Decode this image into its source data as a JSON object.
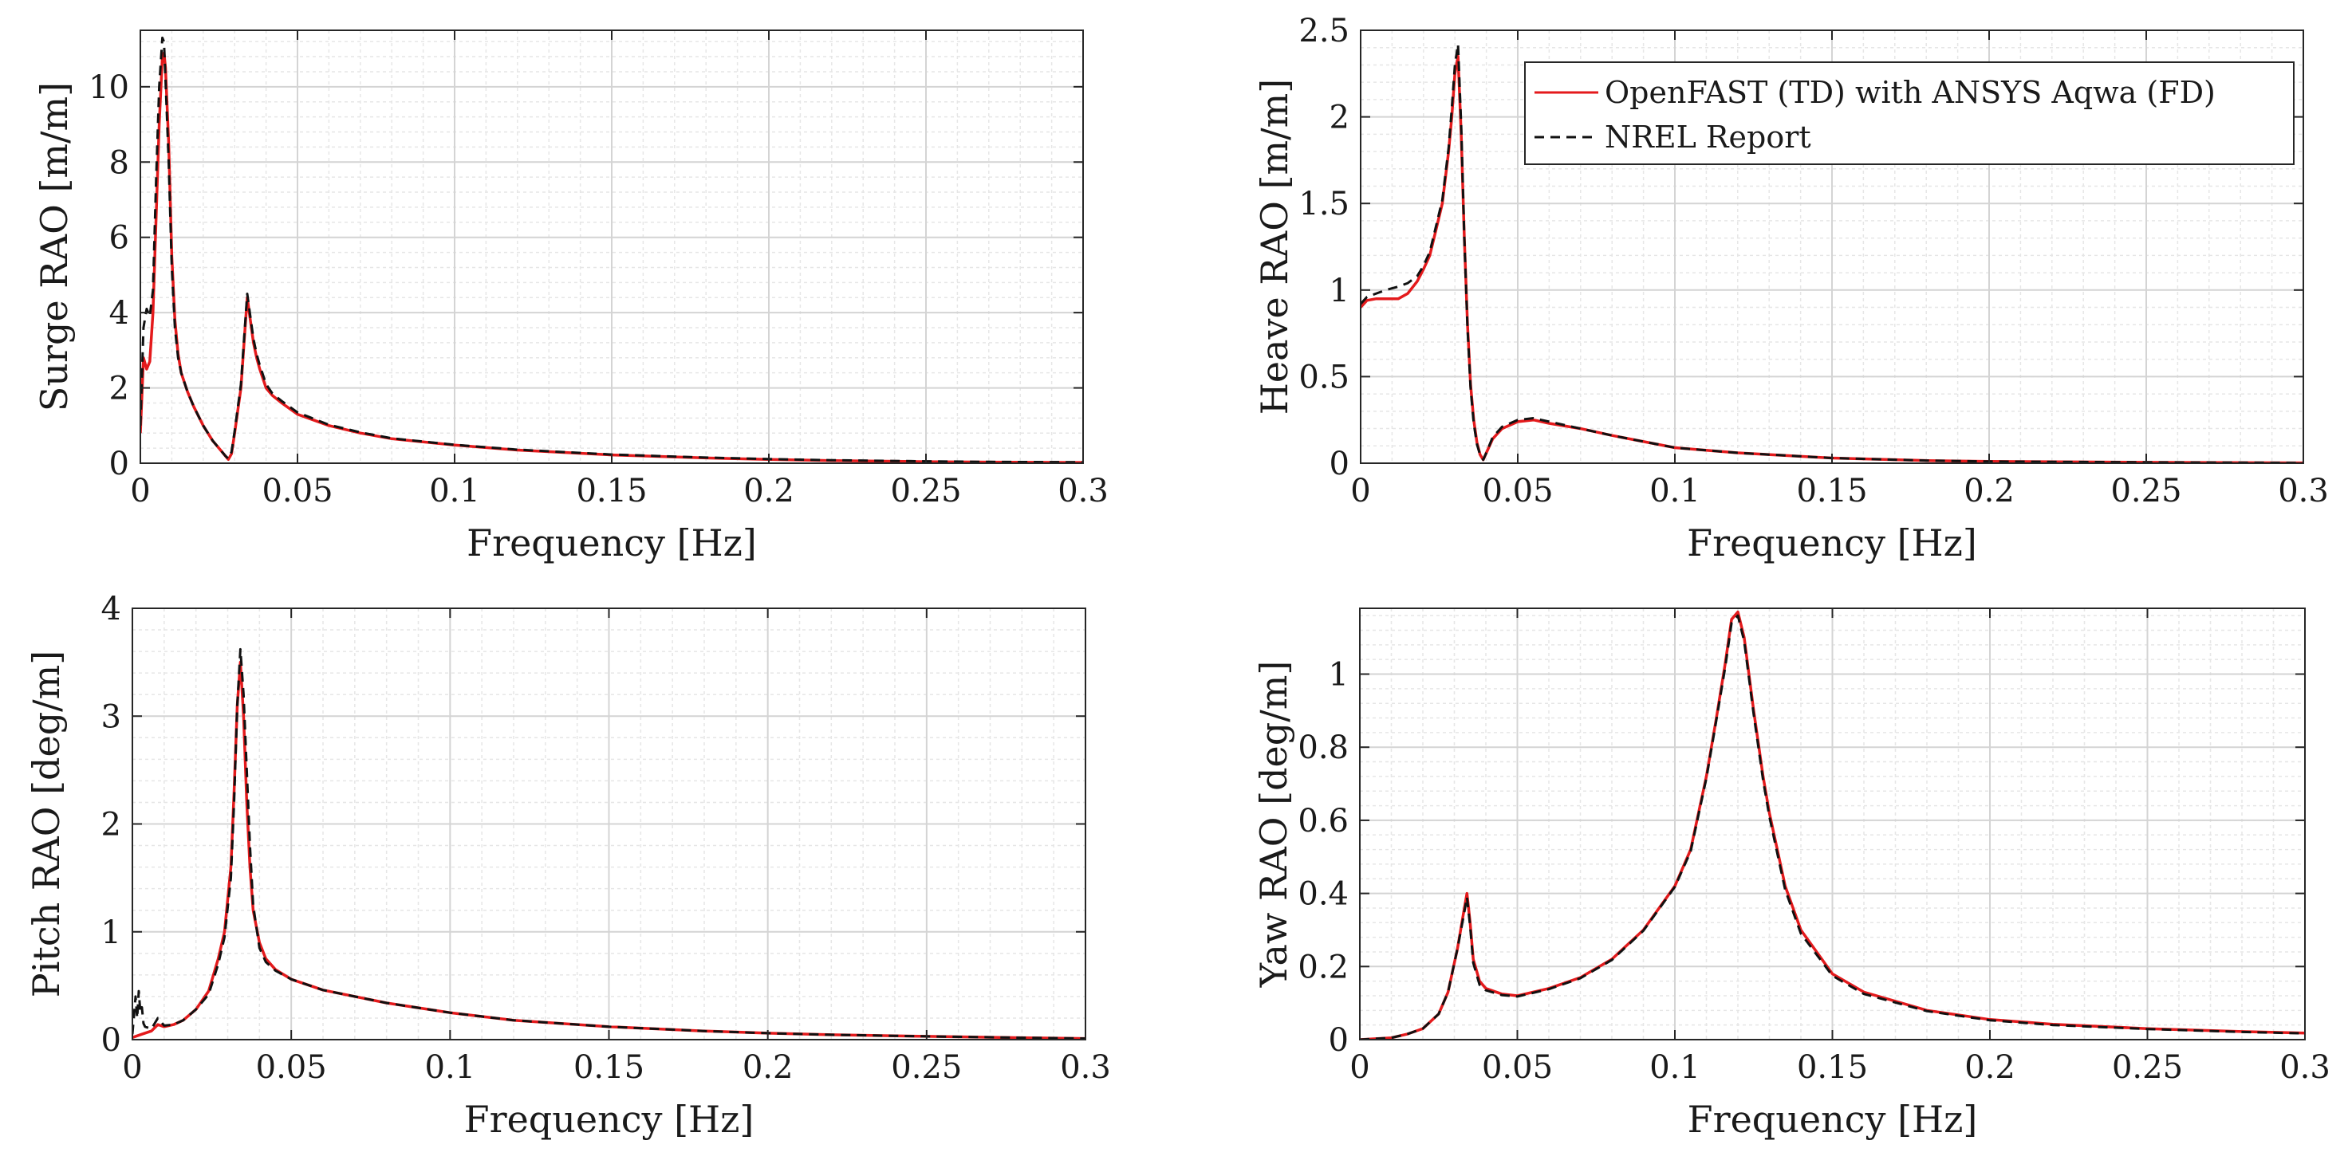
{
  "figure": {
    "title": ""
  },
  "chart_data": [
    {
      "type": "line",
      "id": "surge",
      "title": "",
      "ylabel": "Surge RAO [m/m]",
      "xlabel": "Frequency [Hz]",
      "xlim": [
        0,
        0.3
      ],
      "ylim": [
        0,
        11.5
      ],
      "xticks": [
        0,
        0.05,
        0.1,
        0.15,
        0.2,
        0.25,
        0.3
      ],
      "xtick_labels": [
        "0",
        "0.05",
        "0.1",
        "0.15",
        "0.2",
        "0.25",
        "0.3"
      ],
      "yticks": [
        0,
        2,
        4,
        6,
        8,
        10
      ],
      "ytick_labels": [
        "0",
        "2",
        "4",
        "6",
        "8",
        "10"
      ],
      "grid": true,
      "series": [
        {
          "name": "OpenFAST (TD) with ANSYS Aqwa (FD)",
          "color": "#e41a1c",
          "style": "solid",
          "x": [
            0,
            0.001,
            0.002,
            0.003,
            0.004,
            0.005,
            0.006,
            0.007,
            0.0075,
            0.008,
            0.009,
            0.01,
            0.011,
            0.012,
            0.013,
            0.015,
            0.017,
            0.02,
            0.023,
            0.025,
            0.027,
            0.028,
            0.029,
            0.03,
            0.032,
            0.033,
            0.034,
            0.035,
            0.036,
            0.037,
            0.038,
            0.04,
            0.042,
            0.045,
            0.05,
            0.06,
            0.07,
            0.08,
            0.1,
            0.12,
            0.15,
            0.18,
            0.2,
            0.22,
            0.25,
            0.27,
            0.3
          ],
          "y": [
            0.8,
            2.8,
            2.5,
            2.7,
            4.0,
            6.5,
            9.0,
            10.8,
            10.9,
            10.5,
            8.5,
            5.5,
            3.8,
            2.9,
            2.4,
            1.9,
            1.5,
            1.0,
            0.6,
            0.4,
            0.2,
            0.1,
            0.25,
            0.8,
            2.0,
            3.2,
            4.4,
            3.8,
            3.2,
            2.8,
            2.5,
            2.0,
            1.8,
            1.6,
            1.3,
            1.0,
            0.8,
            0.65,
            0.48,
            0.35,
            0.22,
            0.14,
            0.1,
            0.07,
            0.04,
            0.03,
            0.02
          ]
        },
        {
          "name": "NREL Report",
          "color": "#111111",
          "style": "dashed",
          "x": [
            0,
            0.001,
            0.002,
            0.003,
            0.004,
            0.005,
            0.006,
            0.007,
            0.0075,
            0.008,
            0.009,
            0.01,
            0.011,
            0.012,
            0.013,
            0.015,
            0.017,
            0.02,
            0.023,
            0.025,
            0.027,
            0.028,
            0.029,
            0.03,
            0.032,
            0.033,
            0.034,
            0.035,
            0.036,
            0.037,
            0.038,
            0.04,
            0.042,
            0.045,
            0.05,
            0.06,
            0.07,
            0.08,
            0.1,
            0.12,
            0.15,
            0.18,
            0.2,
            0.22,
            0.25,
            0.27,
            0.3
          ],
          "y": [
            1.0,
            3.6,
            4.1,
            3.9,
            4.6,
            7.5,
            10.0,
            11.3,
            11.2,
            10.2,
            8.0,
            5.2,
            3.6,
            2.8,
            2.4,
            1.9,
            1.5,
            1.0,
            0.6,
            0.4,
            0.2,
            0.12,
            0.3,
            0.85,
            2.1,
            3.3,
            4.5,
            3.9,
            3.3,
            2.9,
            2.6,
            2.1,
            1.85,
            1.65,
            1.35,
            1.02,
            0.82,
            0.66,
            0.49,
            0.36,
            0.23,
            0.15,
            0.11,
            0.08,
            0.05,
            0.035,
            0.025
          ]
        }
      ]
    },
    {
      "type": "line",
      "id": "heave",
      "title": "",
      "ylabel": "Heave RAO [m/m]",
      "xlabel": "Frequency [Hz]",
      "xlim": [
        0,
        0.3
      ],
      "ylim": [
        0,
        2.5
      ],
      "xticks": [
        0,
        0.05,
        0.1,
        0.15,
        0.2,
        0.25,
        0.3
      ],
      "xtick_labels": [
        "0",
        "0.05",
        "0.1",
        "0.15",
        "0.2",
        "0.25",
        "0.3"
      ],
      "yticks": [
        0,
        0.5,
        1,
        1.5,
        2,
        2.5
      ],
      "ytick_labels": [
        "0",
        "0.5",
        "1",
        "1.5",
        "2",
        "2.5"
      ],
      "grid": true,
      "legend": {
        "position": "top-right",
        "entries": [
          "OpenFAST (TD) with ANSYS Aqwa (FD)",
          "NREL Report"
        ]
      },
      "series": [
        {
          "name": "OpenFAST (TD) with ANSYS Aqwa (FD)",
          "color": "#e41a1c",
          "style": "solid",
          "x": [
            0,
            0.002,
            0.005,
            0.008,
            0.012,
            0.015,
            0.018,
            0.02,
            0.022,
            0.024,
            0.026,
            0.028,
            0.029,
            0.03,
            0.031,
            0.032,
            0.033,
            0.034,
            0.035,
            0.036,
            0.037,
            0.038,
            0.039,
            0.04,
            0.042,
            0.045,
            0.05,
            0.055,
            0.06,
            0.07,
            0.08,
            0.1,
            0.12,
            0.15,
            0.18,
            0.2,
            0.25,
            0.3
          ],
          "y": [
            0.9,
            0.94,
            0.95,
            0.95,
            0.95,
            0.98,
            1.05,
            1.12,
            1.2,
            1.35,
            1.5,
            1.8,
            2.0,
            2.25,
            2.35,
            1.9,
            1.3,
            0.8,
            0.45,
            0.25,
            0.12,
            0.05,
            0.02,
            0.06,
            0.14,
            0.2,
            0.24,
            0.25,
            0.23,
            0.2,
            0.16,
            0.09,
            0.06,
            0.03,
            0.015,
            0.01,
            0.005,
            0.002
          ]
        },
        {
          "name": "NREL Report",
          "color": "#111111",
          "style": "dashed",
          "x": [
            0,
            0.002,
            0.005,
            0.008,
            0.012,
            0.015,
            0.018,
            0.02,
            0.022,
            0.024,
            0.026,
            0.028,
            0.029,
            0.03,
            0.031,
            0.032,
            0.033,
            0.034,
            0.035,
            0.036,
            0.037,
            0.038,
            0.039,
            0.04,
            0.042,
            0.045,
            0.05,
            0.055,
            0.06,
            0.07,
            0.08,
            0.1,
            0.12,
            0.15,
            0.18,
            0.2,
            0.25,
            0.3
          ],
          "y": [
            0.92,
            0.96,
            0.98,
            1.0,
            1.02,
            1.04,
            1.08,
            1.14,
            1.22,
            1.37,
            1.52,
            1.82,
            2.05,
            2.3,
            2.42,
            1.95,
            1.3,
            0.78,
            0.43,
            0.23,
            0.11,
            0.05,
            0.02,
            0.06,
            0.15,
            0.21,
            0.25,
            0.26,
            0.24,
            0.2,
            0.16,
            0.09,
            0.06,
            0.03,
            0.015,
            0.01,
            0.005,
            0.002
          ]
        }
      ]
    },
    {
      "type": "line",
      "id": "pitch",
      "title": "",
      "ylabel": "Pitch RAO [deg/m]",
      "xlabel": "Frequency [Hz]",
      "xlim": [
        0,
        0.3
      ],
      "ylim": [
        0,
        4
      ],
      "xticks": [
        0,
        0.05,
        0.1,
        0.15,
        0.2,
        0.25,
        0.3
      ],
      "xtick_labels": [
        "0",
        "0.05",
        "0.1",
        "0.15",
        "0.2",
        "0.25",
        "0.3"
      ],
      "yticks": [
        0,
        1,
        2,
        3,
        4
      ],
      "ytick_labels": [
        "0",
        "1",
        "2",
        "3",
        "4"
      ],
      "grid": true,
      "series": [
        {
          "name": "OpenFAST (TD) with ANSYS Aqwa (FD)",
          "color": "#e41a1c",
          "style": "solid",
          "x": [
            0,
            0.003,
            0.006,
            0.008,
            0.01,
            0.013,
            0.016,
            0.02,
            0.024,
            0.027,
            0.029,
            0.031,
            0.032,
            0.033,
            0.034,
            0.035,
            0.036,
            0.037,
            0.038,
            0.04,
            0.042,
            0.045,
            0.05,
            0.06,
            0.08,
            0.1,
            0.12,
            0.15,
            0.18,
            0.2,
            0.22,
            0.25,
            0.28,
            0.3
          ],
          "y": [
            0.02,
            0.05,
            0.08,
            0.14,
            0.12,
            0.14,
            0.18,
            0.28,
            0.45,
            0.75,
            1.0,
            1.6,
            2.3,
            3.1,
            3.5,
            3.0,
            2.2,
            1.6,
            1.2,
            0.9,
            0.75,
            0.65,
            0.56,
            0.46,
            0.34,
            0.25,
            0.18,
            0.12,
            0.08,
            0.06,
            0.045,
            0.03,
            0.018,
            0.01
          ]
        },
        {
          "name": "NREL Report",
          "color": "#111111",
          "style": "dashed",
          "x": [
            0,
            0.001,
            0.0015,
            0.002,
            0.0025,
            0.003,
            0.0035,
            0.004,
            0.006,
            0.008,
            0.01,
            0.013,
            0.016,
            0.02,
            0.024,
            0.027,
            0.029,
            0.031,
            0.032,
            0.033,
            0.034,
            0.035,
            0.036,
            0.037,
            0.038,
            0.04,
            0.042,
            0.045,
            0.05,
            0.06,
            0.08,
            0.1,
            0.12,
            0.15,
            0.18,
            0.2,
            0.22,
            0.25,
            0.28,
            0.3
          ],
          "y": [
            0.05,
            0.4,
            0.2,
            0.45,
            0.25,
            0.3,
            0.15,
            0.12,
            0.1,
            0.2,
            0.13,
            0.14,
            0.18,
            0.28,
            0.42,
            0.7,
            0.95,
            1.5,
            2.2,
            3.1,
            3.62,
            3.2,
            2.5,
            1.8,
            1.25,
            0.85,
            0.72,
            0.64,
            0.56,
            0.46,
            0.34,
            0.25,
            0.18,
            0.12,
            0.08,
            0.06,
            0.045,
            0.03,
            0.018,
            0.01
          ]
        }
      ]
    },
    {
      "type": "line",
      "id": "yaw",
      "title": "",
      "ylabel": "Yaw RAO [deg/m]",
      "xlabel": "Frequency [Hz]",
      "xlim": [
        0,
        0.3
      ],
      "ylim": [
        0,
        1.18
      ],
      "xticks": [
        0,
        0.05,
        0.1,
        0.15,
        0.2,
        0.25,
        0.3
      ],
      "xtick_labels": [
        "0",
        "0.05",
        "0.1",
        "0.15",
        "0.2",
        "0.25",
        "0.3"
      ],
      "yticks": [
        0,
        0.2,
        0.4,
        0.6,
        0.8,
        1
      ],
      "ytick_labels": [
        "0",
        "0.2",
        "0.4",
        "0.6",
        "0.8",
        "1"
      ],
      "grid": true,
      "series": [
        {
          "name": "OpenFAST (TD) with ANSYS Aqwa (FD)",
          "color": "#e41a1c",
          "style": "solid",
          "x": [
            0,
            0.01,
            0.015,
            0.02,
            0.025,
            0.028,
            0.031,
            0.033,
            0.034,
            0.035,
            0.036,
            0.038,
            0.04,
            0.045,
            0.05,
            0.06,
            0.07,
            0.08,
            0.09,
            0.1,
            0.105,
            0.11,
            0.113,
            0.116,
            0.118,
            0.12,
            0.122,
            0.125,
            0.128,
            0.13,
            0.135,
            0.14,
            0.15,
            0.16,
            0.18,
            0.2,
            0.22,
            0.25,
            0.28,
            0.3
          ],
          "y": [
            0.0,
            0.005,
            0.015,
            0.03,
            0.07,
            0.13,
            0.25,
            0.35,
            0.4,
            0.32,
            0.22,
            0.16,
            0.14,
            0.125,
            0.12,
            0.14,
            0.17,
            0.22,
            0.3,
            0.42,
            0.52,
            0.72,
            0.87,
            1.03,
            1.15,
            1.17,
            1.1,
            0.9,
            0.72,
            0.62,
            0.42,
            0.3,
            0.18,
            0.13,
            0.08,
            0.055,
            0.042,
            0.03,
            0.022,
            0.018
          ]
        },
        {
          "name": "NREL Report",
          "color": "#111111",
          "style": "dashed",
          "x": [
            0,
            0.01,
            0.015,
            0.02,
            0.025,
            0.028,
            0.031,
            0.033,
            0.034,
            0.035,
            0.036,
            0.038,
            0.04,
            0.045,
            0.05,
            0.06,
            0.07,
            0.08,
            0.09,
            0.1,
            0.105,
            0.11,
            0.113,
            0.116,
            0.118,
            0.12,
            0.122,
            0.125,
            0.128,
            0.13,
            0.135,
            0.14,
            0.15,
            0.16,
            0.18,
            0.2,
            0.22,
            0.25,
            0.28,
            0.3
          ],
          "y": [
            0.0,
            0.005,
            0.015,
            0.03,
            0.07,
            0.13,
            0.25,
            0.34,
            0.39,
            0.31,
            0.21,
            0.15,
            0.135,
            0.122,
            0.118,
            0.138,
            0.168,
            0.218,
            0.298,
            0.418,
            0.515,
            0.715,
            0.865,
            1.02,
            1.14,
            1.16,
            1.09,
            0.89,
            0.71,
            0.61,
            0.41,
            0.29,
            0.175,
            0.125,
            0.078,
            0.053,
            0.04,
            0.029,
            0.021,
            0.017
          ]
        }
      ]
    }
  ]
}
